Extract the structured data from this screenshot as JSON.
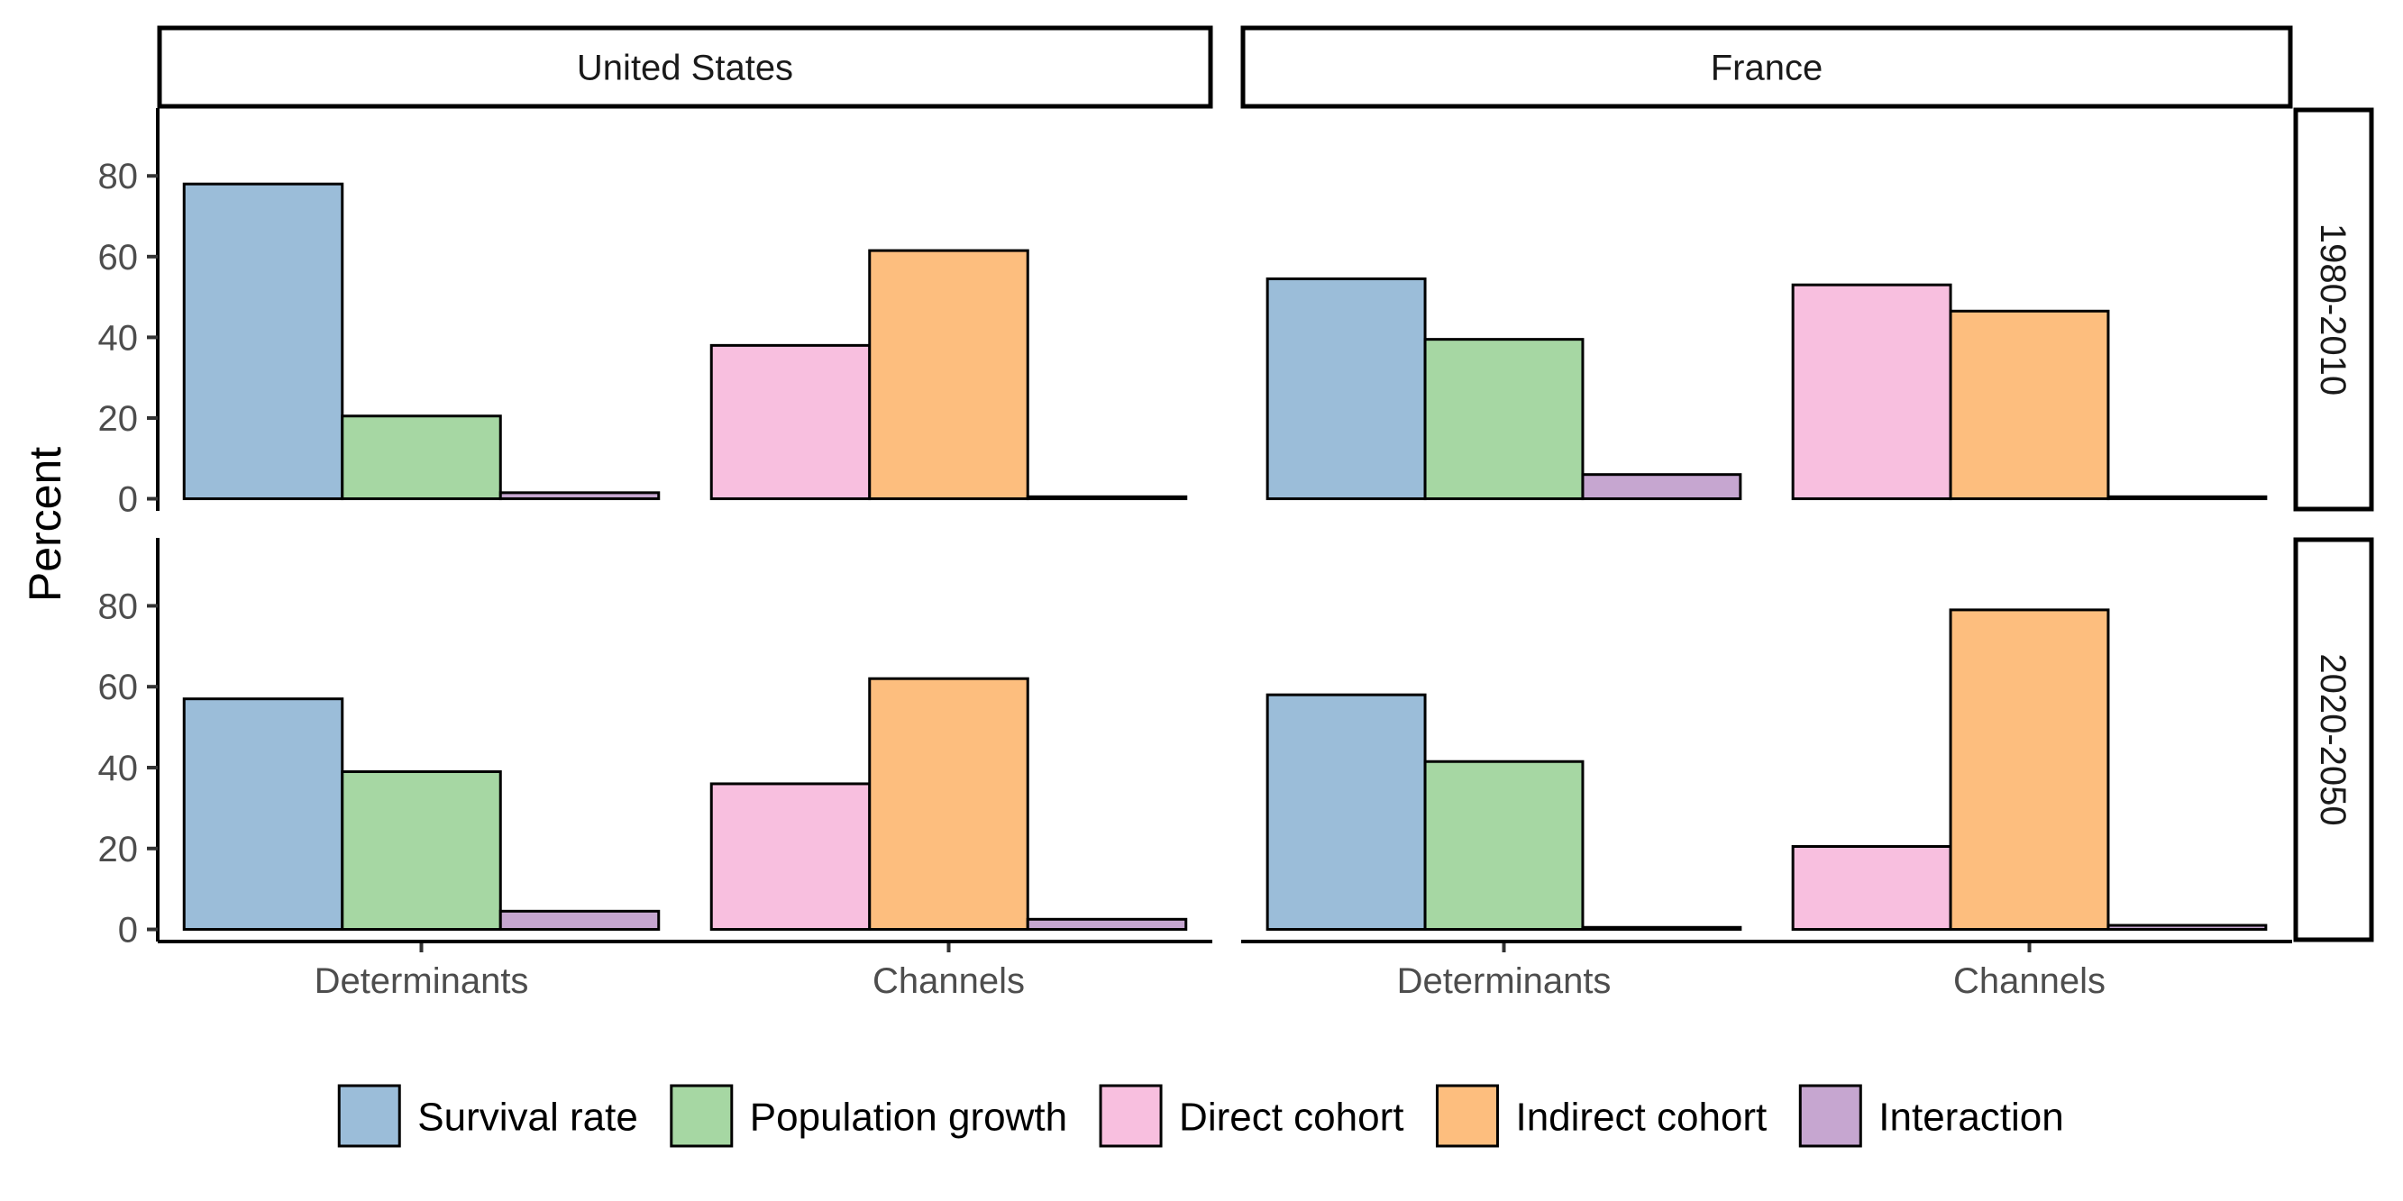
{
  "chart_data": {
    "type": "bar",
    "ylabel": "Percent",
    "ylim": [
      0,
      80
    ],
    "yticks": [
      0,
      20,
      40,
      60,
      80
    ],
    "columns": [
      "United States",
      "France"
    ],
    "rows": [
      "1980-2010",
      "2020-2050"
    ],
    "x_categories": [
      "Determinants",
      "Channels"
    ],
    "group_components": {
      "Determinants": [
        "Survival rate",
        "Population growth",
        "Interaction"
      ],
      "Channels": [
        "Direct cohort",
        "Indirect cohort",
        "Interaction"
      ]
    },
    "legend": {
      "position": "bottom",
      "entries": [
        {
          "name": "Survival rate",
          "color": "#9bbdd9"
        },
        {
          "name": "Population growth",
          "color": "#a6d7a3"
        },
        {
          "name": "Direct cohort",
          "color": "#f8bfdf"
        },
        {
          "name": "Indirect cohort",
          "color": "#fdbe7e"
        },
        {
          "name": "Interaction",
          "color": "#c6a6d0"
        }
      ]
    },
    "panels": [
      {
        "column": "United States",
        "row": "1980-2010",
        "Determinants": {
          "Survival rate": 78,
          "Population growth": 20.5,
          "Interaction": 1.5
        },
        "Channels": {
          "Direct cohort": 38,
          "Indirect cohort": 61.5,
          "Interaction": 0.5
        }
      },
      {
        "column": "France",
        "row": "1980-2010",
        "Determinants": {
          "Survival rate": 54.5,
          "Population growth": 39.5,
          "Interaction": 6
        },
        "Channels": {
          "Direct cohort": 53,
          "Indirect cohort": 46.5,
          "Interaction": 0.5
        }
      },
      {
        "column": "United States",
        "row": "2020-2050",
        "Determinants": {
          "Survival rate": 57,
          "Population growth": 39,
          "Interaction": 4.5
        },
        "Channels": {
          "Direct cohort": 36,
          "Indirect cohort": 62,
          "Interaction": 2.5
        }
      },
      {
        "column": "France",
        "row": "2020-2050",
        "Determinants": {
          "Survival rate": 58,
          "Population growth": 41.5,
          "Interaction": 0.5
        },
        "Channels": {
          "Direct cohort": 20.5,
          "Indirect cohort": 79,
          "Interaction": 1
        }
      }
    ]
  }
}
